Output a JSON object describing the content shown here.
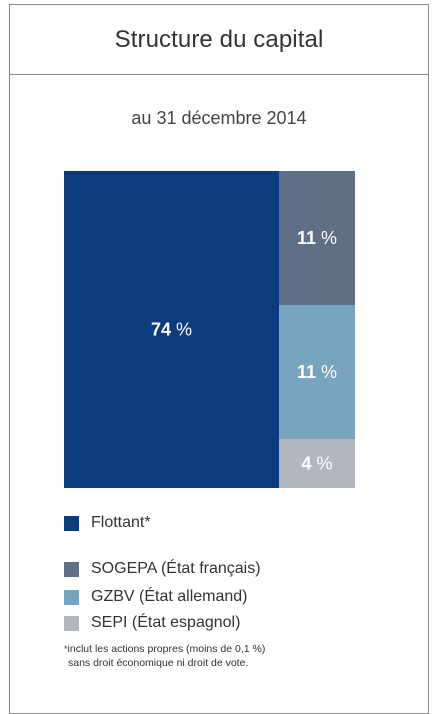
{
  "header": {
    "title": "Structure du capital"
  },
  "subtitle": "au 31 décembre 2014",
  "chart_data": {
    "type": "treemap",
    "title": "Structure du capital",
    "subtitle": "au 31 décembre 2014",
    "unit": "%",
    "segments": [
      {
        "name": "Flottant*",
        "value": 74,
        "color": "#0d3c7d",
        "label_color": "#ffffff"
      },
      {
        "name": "SOGEPA (État français)",
        "value": 11,
        "color": "#5e6f86",
        "label_color": "#ffffff"
      },
      {
        "name": "GZBV (État allemand)",
        "value": 11,
        "color": "#78a4bf",
        "label_color": "#ffffff"
      },
      {
        "name": "SEPI (État espagnol)",
        "value": 4,
        "color": "#b3b6bf",
        "label_color": "#ffffff"
      }
    ]
  },
  "legend": [
    {
      "label": "Flottant*",
      "color": "#0d3c7d"
    },
    {
      "label": "SOGEPA (État français)",
      "color": "#5e6f86"
    },
    {
      "label": "GZBV (État allemand)",
      "color": "#78a4bf"
    },
    {
      "label": "SEPI (État espagnol)",
      "color": "#b3b6bf"
    }
  ],
  "footnote": {
    "marker": "*",
    "line1": "inclut les actions propres (moins de 0,1 %)",
    "line2": "sans droit économique ni droit de vote."
  }
}
